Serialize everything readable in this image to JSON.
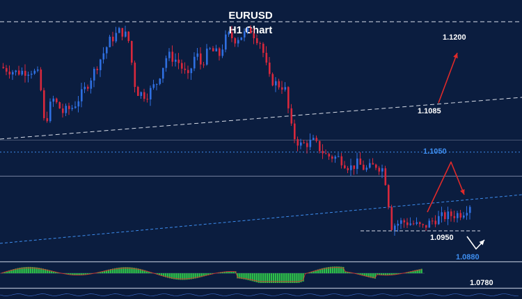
{
  "chart_data": {
    "type": "candlestick",
    "title": "EURUSD",
    "subtitle": "H1 Chart",
    "ylim": [
      1.0925,
      1.1225
    ],
    "colors": {
      "background": "#0b1d3f",
      "bull": "#2f6fe0",
      "bear": "#d8283c",
      "white_level": "#ffffff",
      "blue_level": "#3e8ef0",
      "arrow": "#e02a2a",
      "osc_up": "#2ec04a",
      "osc_down": "#2ec04a",
      "osc_line": "#d43030"
    },
    "price_path": [
      [
        0,
        1.1148
      ],
      [
        0.03,
        1.1142
      ],
      [
        0.06,
        1.1144
      ],
      [
        0.075,
        1.1138
      ],
      [
        0.085,
        1.108
      ],
      [
        0.1,
        1.1112
      ],
      [
        0.12,
        1.1096
      ],
      [
        0.14,
        1.1102
      ],
      [
        0.165,
        1.1125
      ],
      [
        0.19,
        1.1155
      ],
      [
        0.21,
        1.1178
      ],
      [
        0.23,
        1.119
      ],
      [
        0.245,
        1.1182
      ],
      [
        0.26,
        1.112
      ],
      [
        0.28,
        1.1115
      ],
      [
        0.3,
        1.113
      ],
      [
        0.32,
        1.1162
      ],
      [
        0.34,
        1.1155
      ],
      [
        0.36,
        1.1135
      ],
      [
        0.375,
        1.1165
      ],
      [
        0.385,
        1.115
      ],
      [
        0.4,
        1.1168
      ],
      [
        0.42,
        1.1162
      ],
      [
        0.435,
        1.1185
      ],
      [
        0.45,
        1.118
      ],
      [
        0.48,
        1.119
      ],
      [
        0.5,
        1.1175
      ],
      [
        0.515,
        1.1135
      ],
      [
        0.53,
        1.1128
      ],
      [
        0.545,
        1.1125
      ],
      [
        0.56,
        1.107
      ],
      [
        0.575,
        1.1058
      ],
      [
        0.6,
        1.1062
      ],
      [
        0.625,
        1.1046
      ],
      [
        0.65,
        1.1043
      ],
      [
        0.67,
        1.1032
      ],
      [
        0.685,
        1.1037
      ],
      [
        0.7,
        1.103
      ],
      [
        0.72,
        1.1035
      ],
      [
        0.735,
        1.103
      ],
      [
        0.75,
        1.0965
      ],
      [
        0.77,
        1.097
      ],
      [
        0.79,
        1.0968
      ],
      [
        0.81,
        1.0963
      ],
      [
        0.83,
        1.0972
      ],
      [
        0.85,
        1.0976
      ],
      [
        0.87,
        1.0978
      ],
      [
        0.885,
        1.098
      ],
      [
        0.9,
        1.099
      ]
    ],
    "levels": [
      {
        "label": "1.1200",
        "value": 1.12,
        "style": "white-dashed"
      },
      {
        "label": "1.1085",
        "value": 1.1085,
        "style": "white-dashed-trend"
      },
      {
        "label": "1.1050",
        "value": 1.105,
        "style": "blue-dotted"
      },
      {
        "label": "1.0950",
        "value": 1.095,
        "style": "white-dashed-short"
      },
      {
        "label": "1.0880",
        "value": 1.088,
        "style": "blue-label"
      },
      {
        "label": "1.0780",
        "value": 1.078,
        "style": "white-label"
      }
    ]
  }
}
